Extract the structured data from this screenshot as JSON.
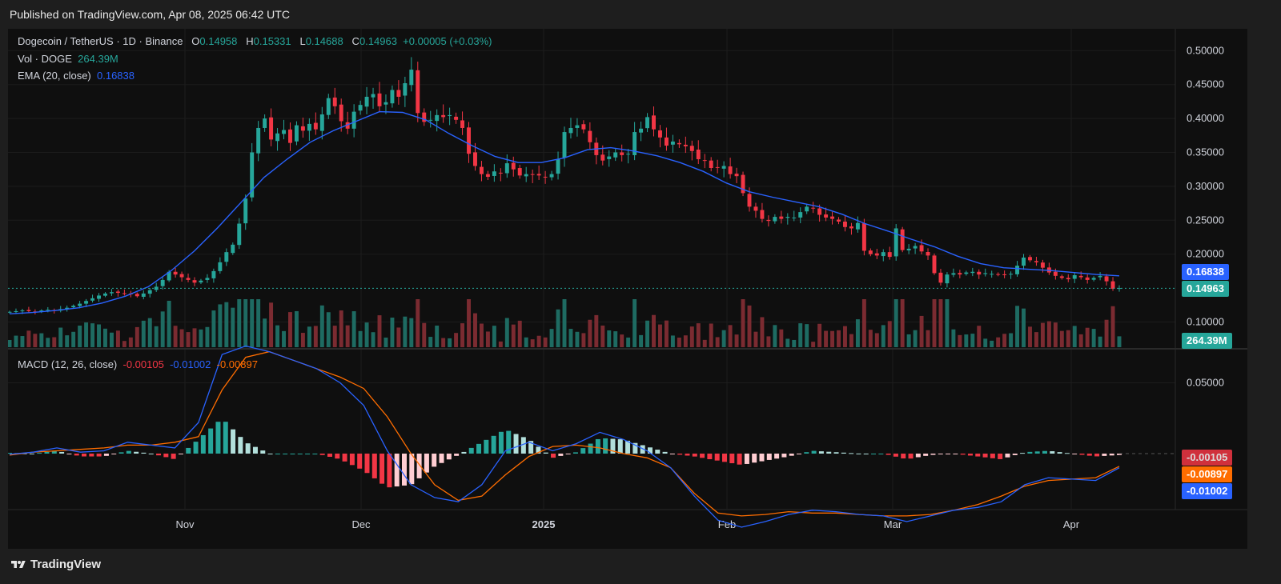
{
  "header": {
    "published": "Published on TradingView.com, Apr 08, 2025 06:42 UTC"
  },
  "legend": {
    "symbol": "Dogecoin / TetherUS · 1D · Binance",
    "o_label": "O",
    "o_value": "0.14958",
    "h_label": "H",
    "h_value": "0.15331",
    "l_label": "L",
    "l_value": "0.14688",
    "c_label": "C",
    "c_value": "0.14963",
    "change": "+0.00005 (+0.03%)",
    "vol_label": "Vol · DOGE",
    "vol_value": "264.39M",
    "ema_label": "EMA (20, close)",
    "ema_value": "0.16838",
    "macd_label": "MACD (12, 26, close)",
    "macd_hist": "-0.00105",
    "macd_line": "-0.01002",
    "macd_signal": "-0.00897"
  },
  "price_axis": [
    "0.50000",
    "0.45000",
    "0.40000",
    "0.35000",
    "0.30000",
    "0.25000",
    "0.20000",
    "0.10000"
  ],
  "macd_axis": [
    "0.05000"
  ],
  "x_axis": [
    "Nov",
    "Dec",
    "2025",
    "Feb",
    "Mar",
    "Apr"
  ],
  "tags": {
    "ema": "0.16838",
    "close": "0.14963",
    "volume": "264.39M",
    "hist": "-0.00105",
    "signal": "-0.00897",
    "macd": "-0.01002"
  },
  "colors": {
    "up": "#26a69a",
    "down": "#f23645",
    "ema": "#2962ff",
    "macd": "#2962ff",
    "signal": "#ff6d00",
    "hist_up": "#26a69a",
    "hist_down": "#f23645",
    "background": "#0f0f0f"
  },
  "footer": {
    "brand": "TradingView"
  },
  "chart_data": {
    "type": "candlestick",
    "title": "Dogecoin / TetherUS · 1D · Binance",
    "ylim": [
      0.08,
      0.52
    ],
    "x_labels": [
      "Nov",
      "Dec",
      "2025",
      "Feb",
      "Mar",
      "Apr"
    ],
    "last": {
      "open": 0.14958,
      "high": 0.15331,
      "low": 0.14688,
      "close": 0.14963,
      "ema20": 0.16838,
      "volume": "264.39M"
    },
    "closes": [
      0.115,
      0.116,
      0.117,
      0.116,
      0.115,
      0.117,
      0.118,
      0.117,
      0.119,
      0.121,
      0.124,
      0.127,
      0.131,
      0.135,
      0.139,
      0.142,
      0.144,
      0.143,
      0.142,
      0.141,
      0.138,
      0.142,
      0.147,
      0.152,
      0.162,
      0.174,
      0.17,
      0.166,
      0.162,
      0.158,
      0.161,
      0.165,
      0.175,
      0.188,
      0.203,
      0.214,
      0.245,
      0.282,
      0.35,
      0.386,
      0.4,
      0.369,
      0.378,
      0.383,
      0.364,
      0.39,
      0.382,
      0.392,
      0.384,
      0.406,
      0.43,
      0.418,
      0.396,
      0.385,
      0.41,
      0.42,
      0.432,
      0.436,
      0.418,
      0.424,
      0.442,
      0.432,
      0.452,
      0.472,
      0.408,
      0.395,
      0.398,
      0.405,
      0.402,
      0.405,
      0.398,
      0.386,
      0.348,
      0.33,
      0.318,
      0.314,
      0.322,
      0.32,
      0.334,
      0.325,
      0.316,
      0.318,
      0.317,
      0.316,
      0.314,
      0.318,
      0.34,
      0.38,
      0.386,
      0.39,
      0.384,
      0.365,
      0.346,
      0.338,
      0.344,
      0.35,
      0.346,
      0.348,
      0.38,
      0.385,
      0.402,
      0.384,
      0.372,
      0.36,
      0.366,
      0.362,
      0.359,
      0.352,
      0.34,
      0.338,
      0.327,
      0.328,
      0.33,
      0.318,
      0.315,
      0.29,
      0.27,
      0.264,
      0.252,
      0.249,
      0.255,
      0.252,
      0.255,
      0.254,
      0.262,
      0.27,
      0.268,
      0.258,
      0.254,
      0.252,
      0.248,
      0.24,
      0.238,
      0.246,
      0.205,
      0.2,
      0.198,
      0.203,
      0.196,
      0.238,
      0.206,
      0.208,
      0.212,
      0.204,
      0.198,
      0.172,
      0.158,
      0.17,
      0.172,
      0.17,
      0.173,
      0.174,
      0.17,
      0.172,
      0.171,
      0.17,
      0.169,
      0.171,
      0.183,
      0.195,
      0.191,
      0.188,
      0.18,
      0.173,
      0.168,
      0.165,
      0.163,
      0.169,
      0.166,
      0.162,
      0.165,
      0.168,
      0.16,
      0.149,
      0.15
    ],
    "ema20": [
      0.112,
      0.114,
      0.117,
      0.121,
      0.128,
      0.138,
      0.152,
      0.176,
      0.205,
      0.239,
      0.276,
      0.313,
      0.34,
      0.365,
      0.382,
      0.396,
      0.41,
      0.409,
      0.398,
      0.378,
      0.36,
      0.344,
      0.335,
      0.335,
      0.342,
      0.354,
      0.357,
      0.352,
      0.345,
      0.335,
      0.322,
      0.305,
      0.292,
      0.284,
      0.277,
      0.27,
      0.259,
      0.245,
      0.234,
      0.222,
      0.211,
      0.197,
      0.186,
      0.18,
      0.178,
      0.176,
      0.173,
      0.17,
      0.168
    ],
    "macd": [
      -0.0005,
      0.001,
      0.004,
      0.001,
      0.002,
      0.008,
      0.006,
      0.004,
      0.022,
      0.07,
      0.076,
      0.072,
      0.066,
      0.06,
      0.05,
      0.034,
      0.002,
      -0.022,
      -0.031,
      -0.034,
      -0.022,
      0.002,
      0.008,
      0.002,
      0.007,
      0.015,
      0.01,
      0.002,
      -0.01,
      -0.03,
      -0.047,
      -0.052,
      -0.048,
      -0.043,
      -0.04,
      -0.041,
      -0.043,
      -0.044,
      -0.048,
      -0.044,
      -0.04,
      -0.038,
      -0.034,
      -0.022,
      -0.017,
      -0.018,
      -0.019,
      -0.01
    ],
    "signal": [
      -0.001,
      0.001,
      0.002,
      0.003,
      0.004,
      0.006,
      0.006,
      0.008,
      0.012,
      0.045,
      0.068,
      0.072,
      0.066,
      0.06,
      0.054,
      0.046,
      0.026,
      0.0,
      -0.022,
      -0.033,
      -0.03,
      -0.015,
      -0.002,
      0.005,
      0.006,
      0.004,
      0.0,
      -0.003,
      -0.01,
      -0.028,
      -0.042,
      -0.044,
      -0.043,
      -0.041,
      -0.042,
      -0.042,
      -0.043,
      -0.044,
      -0.044,
      -0.043,
      -0.04,
      -0.036,
      -0.03,
      -0.023,
      -0.019,
      -0.018,
      -0.017,
      -0.009
    ]
  }
}
